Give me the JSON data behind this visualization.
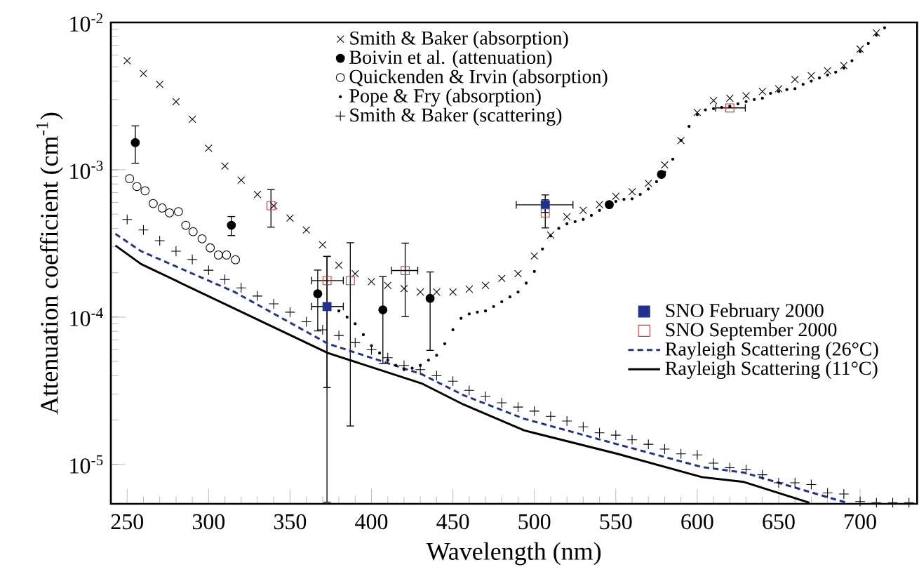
{
  "chart_data": {
    "type": "scatter",
    "xlabel": "Wavelength (nm)",
    "ylabel": "Attenuation coefficient (cm$^{-1}$)",
    "log": "y",
    "xlim": [
      240,
      735
    ],
    "ylim": [
      5.4e-06,
      0.01
    ],
    "grid": false,
    "legend": "top",
    "xticks": [
      250,
      300,
      350,
      400,
      450,
      500,
      550,
      600,
      650,
      700
    ],
    "yticks": [
      {
        "value": 1e-05,
        "label": "10$^{-5}$"
      },
      {
        "value": 0.0001,
        "label": "10$^{-4}$"
      },
      {
        "value": 0.001,
        "label": "10$^{-3}$"
      },
      {
        "value": 0.01,
        "label": "10$^{-2}$"
      }
    ],
    "series": [
      {
        "name": "Smith & Baker (absorption)",
        "type": "scatter",
        "marker": "cross",
        "color": "#000000",
        "x": [
          250,
          260,
          270,
          280,
          290,
          300,
          310,
          320,
          330,
          340,
          350,
          360,
          370,
          380,
          390,
          400,
          410,
          420,
          430,
          440,
          450,
          460,
          470,
          480,
          490,
          500,
          510,
          520,
          530,
          540,
          550,
          560,
          570,
          580,
          590,
          600,
          610,
          620,
          630,
          640,
          650,
          660,
          670,
          680,
          690,
          700,
          710
        ],
        "values": [
          0.0055,
          0.0045,
          0.0038,
          0.0029,
          0.0022,
          0.0014,
          0.00106,
          0.00085,
          0.00068,
          0.00057,
          0.00047,
          0.00039,
          0.00031,
          0.000225,
          0.000197,
          0.000174,
          0.000164,
          0.000156,
          0.000148,
          0.000148,
          0.000148,
          0.000155,
          0.000164,
          0.000183,
          0.000197,
          0.00026,
          0.00036,
          0.00048,
          0.00053,
          0.00058,
          0.00066,
          0.00071,
          0.00081,
          0.00108,
          0.00158,
          0.00245,
          0.00295,
          0.00306,
          0.00318,
          0.0034,
          0.00355,
          0.0041,
          0.00435,
          0.0047,
          0.0051,
          0.0066,
          0.0085
        ]
      },
      {
        "name": "Boivin et al. (attenuation)",
        "type": "scatter",
        "marker": "circle",
        "color": "#000000",
        "x": [
          255,
          314,
          367,
          407,
          436,
          546,
          578
        ],
        "values": [
          0.00153,
          0.00042,
          0.000144,
          0.000112,
          0.000134,
          0.00058,
          0.00093
        ],
        "errors": [
          [
            0.0011,
            0.002
          ],
          [
            0.000355,
            0.000485
          ],
          [
            8e-05,
            0.00021
          ],
          [
            4.8e-05,
            0.00019
          ],
          [
            5.9e-05,
            0.000204
          ],
          null,
          null
        ]
      },
      {
        "name": "Quickenden & Irvin (absorption)",
        "type": "scatter",
        "marker": "circle",
        "color": "#000000",
        "x": [
          251.5,
          256,
          261,
          266,
          271.5,
          276,
          281.5,
          286,
          290.5,
          296,
          301,
          306,
          311,
          316.5
        ],
        "values": [
          0.00087,
          0.00077,
          0.00072,
          0.00059,
          0.00055,
          0.00051,
          0.00052,
          0.00042,
          0.00038,
          0.00034,
          0.000295,
          0.000264,
          0.000264,
          0.000245
        ]
      },
      {
        "name": "Pope & Fry (absorption)",
        "type": "scatter",
        "marker": "circle",
        "color": "#000000",
        "x": [
          380,
          385,
          390,
          395,
          400,
          405,
          410,
          415,
          420,
          425,
          430,
          435,
          440,
          445,
          450,
          455,
          460,
          465,
          470,
          475,
          480,
          485,
          490,
          495,
          500,
          505,
          510,
          515,
          520,
          525,
          530,
          535,
          540,
          550,
          555,
          560,
          565,
          570,
          575,
          580,
          585,
          590,
          595,
          600,
          605,
          610,
          615,
          620,
          625,
          630,
          635,
          640,
          645,
          650,
          655,
          660,
          665,
          670,
          675,
          680,
          685,
          690,
          695,
          700,
          705,
          710,
          715
        ],
        "values": [
          0.00011,
          0.0001,
          9e-05,
          7.6e-05,
          6.4e-05,
          5.7e-05,
          5.1e-05,
          4.7e-05,
          4.4e-05,
          4.5e-05,
          4.7e-05,
          5.1e-05,
          5.5e-05,
          6.6e-05,
          8.2e-05,
          9.8e-05,
          0.000105,
          0.000108,
          0.00011,
          0.000118,
          0.000127,
          0.000137,
          0.000148,
          0.00017,
          0.000204,
          0.00029,
          0.000355,
          0.0004,
          0.00043,
          0.000445,
          0.00046,
          0.00049,
          0.00053,
          0.00061,
          0.00063,
          0.000635,
          0.00068,
          0.00074,
          0.00083,
          0.00096,
          0.00118,
          0.00158,
          0.00197,
          0.00237,
          0.00255,
          0.0026,
          0.00265,
          0.0027,
          0.0028,
          0.0029,
          0.003,
          0.00306,
          0.0033,
          0.0034,
          0.0035,
          0.00355,
          0.0038,
          0.004,
          0.0042,
          0.0044,
          0.0046,
          0.0049,
          0.0055,
          0.00635,
          0.0072,
          0.0082,
          0.0092
        ]
      },
      {
        "name": "Smith & Baker (scattering)",
        "type": "scatter",
        "marker": "plus",
        "color": "#000000",
        "x": [
          250,
          260,
          270,
          280,
          290,
          300,
          310,
          320,
          330,
          340,
          350,
          360,
          370,
          380,
          390,
          400,
          410,
          420,
          430,
          440,
          450,
          460,
          470,
          480,
          490,
          500,
          510,
          520,
          530,
          540,
          550,
          560,
          570,
          580,
          590,
          600,
          610,
          620,
          630,
          640,
          650,
          660,
          670,
          680,
          690,
          700,
          710,
          720,
          730
        ],
        "values": [
          0.00046,
          0.00039,
          0.00033,
          0.00028,
          0.000246,
          0.000208,
          0.00018,
          0.000158,
          0.000139,
          0.000123,
          0.000108,
          9.3e-05,
          8.2e-05,
          7.5e-05,
          6.7e-05,
          6e-05,
          5.3e-05,
          4.7e-05,
          4.4e-05,
          4e-05,
          3.67e-05,
          3.18e-05,
          2.89e-05,
          2.62e-05,
          2.45e-05,
          2.3e-05,
          2.12e-05,
          1.97e-05,
          1.8e-05,
          1.64e-05,
          1.58e-05,
          1.47e-05,
          1.37e-05,
          1.27e-05,
          1.18e-05,
          1.16e-05,
          1.02e-05,
          9.5e-06,
          9.2e-06,
          8.5e-06,
          7.5e-06,
          7.5e-06,
          7.3e-06,
          6.4e-06,
          6.3e-06,
          5.6e-06,
          5.5e-06,
          5.5e-06,
          5.5e-06
        ]
      },
      {
        "name": "SNO February 2000",
        "type": "scatter",
        "marker": "square",
        "color": "#22318f",
        "x": [
          372.7,
          506.7
        ],
        "values": [
          0.000118,
          0.000578
        ],
        "errors": [
          [
            5.5e-06,
            0.00026
          ],
          [
            0.00051,
            0.00068
          ]
        ],
        "xerrors": [
          [
            363,
            383
          ],
          [
            488.6,
            524
          ]
        ]
      },
      {
        "name": "SNO September 2000",
        "type": "scatter",
        "marker": "square",
        "color": "#e8312c",
        "x": [
          338.3,
          372.7,
          387,
          420.7,
          506.7,
          620
        ],
        "values": [
          0.00057,
          0.000177,
          0.000177,
          0.000207,
          0.00051,
          0.00263
        ],
        "errors": [
          [
            0.000405,
            0.00074
          ],
          [
            3.3e-05,
            0.00026
          ],
          [
            1.81e-05,
            0.000322
          ],
          [
            0.0001,
            0.00032
          ],
          [
            0.0004,
            0.00063
          ],
          null
        ],
        "xerrors": [
          null,
          [
            363,
            383
          ],
          null,
          [
            412,
            428.7
          ],
          null,
          [
            611,
            629.8
          ]
        ]
      },
      {
        "name": "Rayleigh Scattering (26°C)",
        "type": "line",
        "line_style": "dashed",
        "color": "#22318f",
        "x": [
          242.8,
          258.6,
          316,
          373.3,
          430.7,
          456.5,
          493.8,
          551,
          602.8,
          628.6,
          691.5
        ],
        "values": [
          0.000367,
          0.00028,
          0.000148,
          6.6e-05,
          4.1e-05,
          2.95e-05,
          2.04e-05,
          1.37e-05,
          9.6e-06,
          8.8e-06,
          5.5e-06
        ]
      },
      {
        "name": "Rayleigh Scattering (11°C)",
        "type": "line",
        "line_style": "solid",
        "color": "#000000",
        "x": [
          242.8,
          258.6,
          316,
          373.3,
          430.7,
          456.5,
          493.8,
          551,
          602.8,
          628.6,
          668.8
        ],
        "values": [
          0.000306,
          0.000229,
          0.000114,
          5.7e-05,
          3.55e-05,
          2.55e-05,
          1.7e-05,
          1.18e-05,
          8.2e-06,
          7.6e-06,
          5.5e-06
        ]
      }
    ]
  }
}
